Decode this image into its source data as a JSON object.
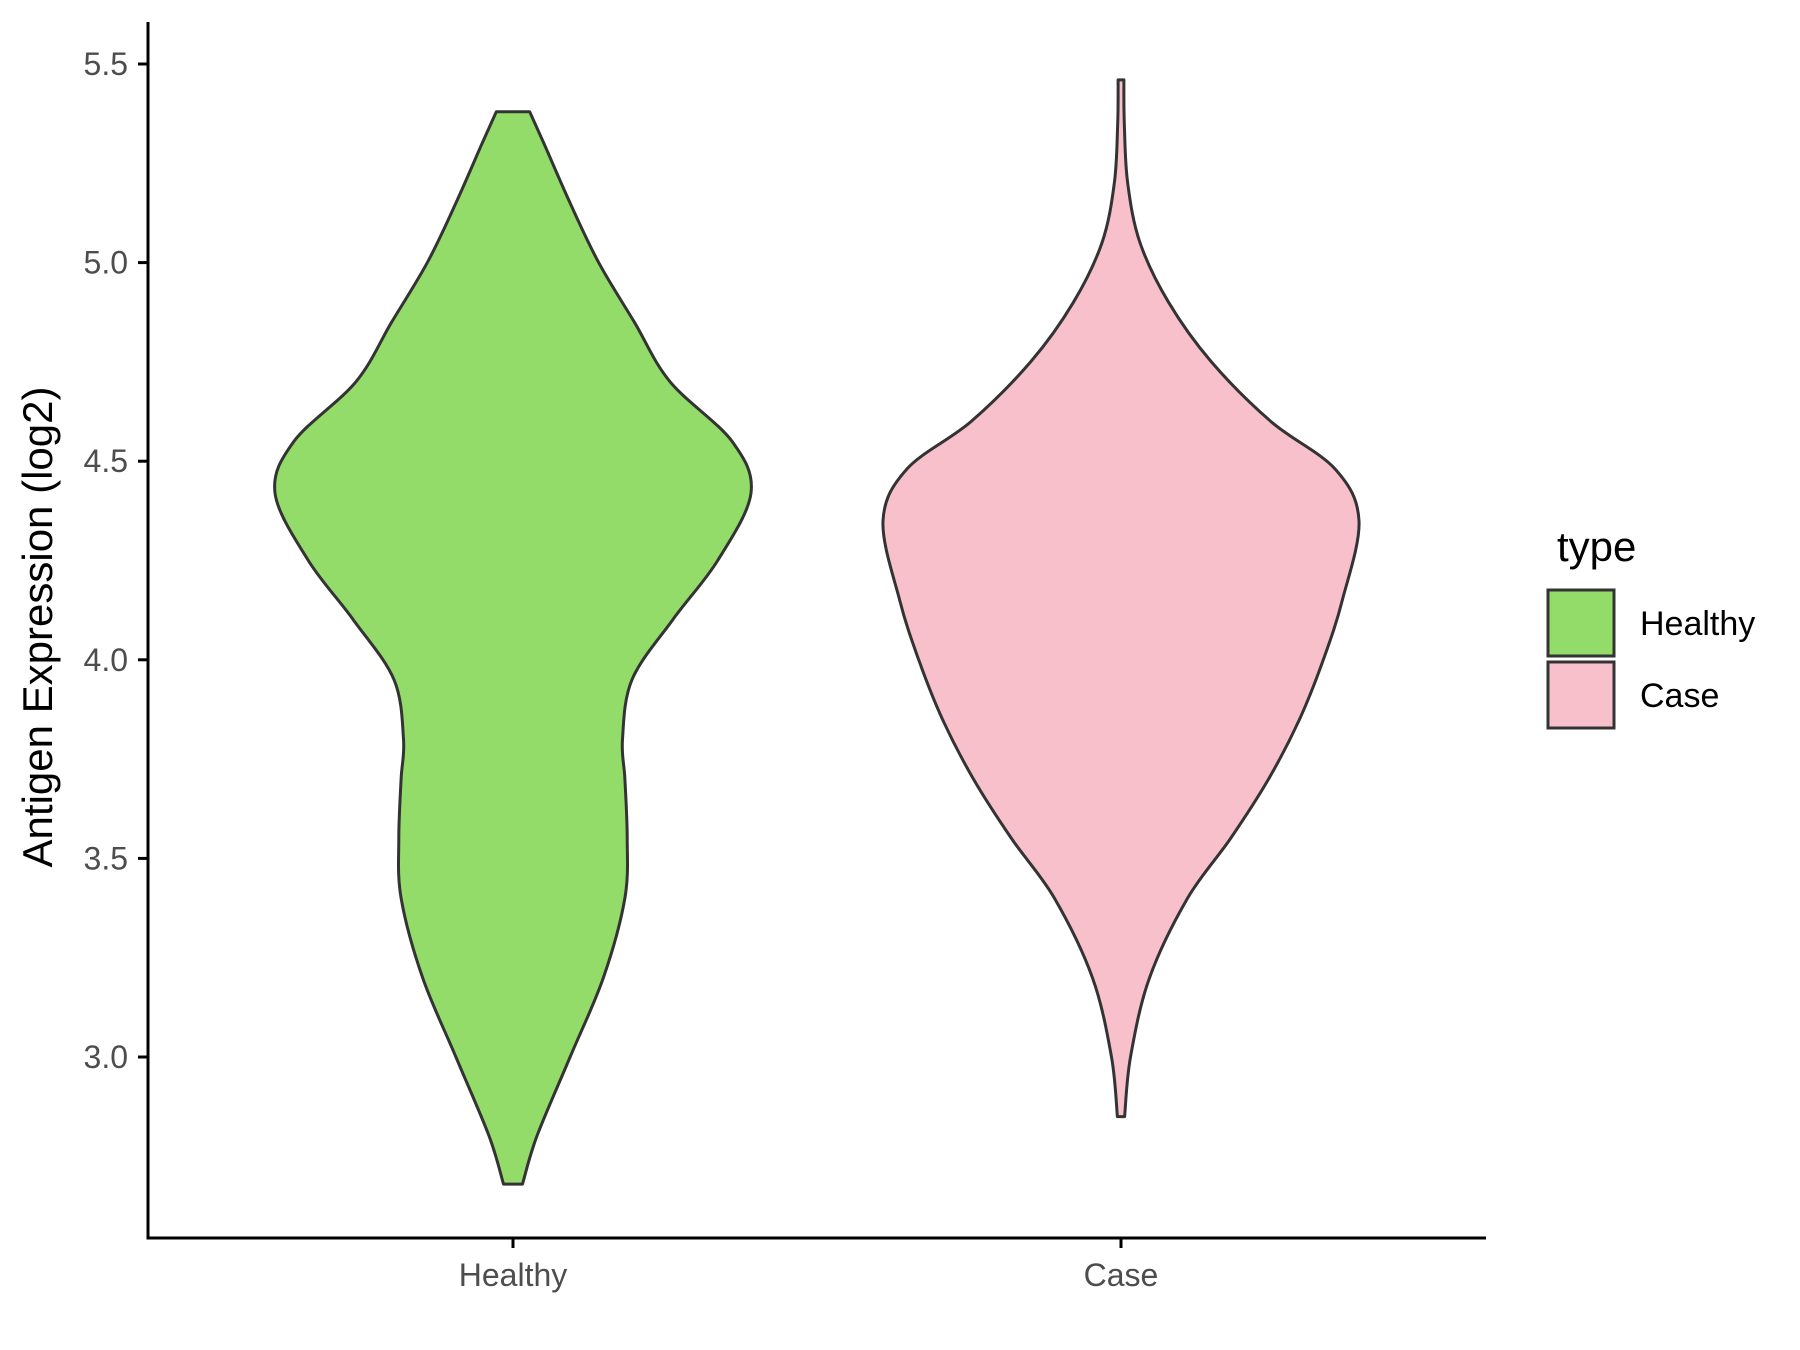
{
  "chart_data": {
    "type": "violin",
    "title": "",
    "xlabel": "",
    "ylabel": "Antigen Expression (log2)",
    "ylim": [
      2.55,
      5.6
    ],
    "yticks": [
      "3.0",
      "3.5",
      "4.0",
      "4.5",
      "5.0",
      "5.5"
    ],
    "categories": [
      "Healthy",
      "Case"
    ],
    "legend": {
      "title": "type",
      "position": "right",
      "entries": [
        "Healthy",
        "Case"
      ]
    },
    "grid": false,
    "series": [
      {
        "name": "Healthy",
        "color": "#93dc6a",
        "range": [
          2.68,
          5.38
        ],
        "density": [
          [
            2.68,
            0.04
          ],
          [
            2.8,
            0.1
          ],
          [
            3.0,
            0.24
          ],
          [
            3.2,
            0.38
          ],
          [
            3.4,
            0.47
          ],
          [
            3.55,
            0.48
          ],
          [
            3.7,
            0.47
          ],
          [
            3.8,
            0.46
          ],
          [
            3.95,
            0.5
          ],
          [
            4.1,
            0.67
          ],
          [
            4.25,
            0.86
          ],
          [
            4.42,
            1.0
          ],
          [
            4.55,
            0.92
          ],
          [
            4.7,
            0.66
          ],
          [
            4.85,
            0.51
          ],
          [
            5.0,
            0.36
          ],
          [
            5.15,
            0.24
          ],
          [
            5.3,
            0.13
          ],
          [
            5.38,
            0.07
          ]
        ]
      },
      {
        "name": "Case",
        "color": "#f7c0cb",
        "range": [
          2.85,
          5.46
        ],
        "density": [
          [
            2.85,
            0.015
          ],
          [
            3.0,
            0.04
          ],
          [
            3.2,
            0.12
          ],
          [
            3.4,
            0.28
          ],
          [
            3.55,
            0.46
          ],
          [
            3.7,
            0.62
          ],
          [
            3.85,
            0.75
          ],
          [
            4.0,
            0.85
          ],
          [
            4.15,
            0.93
          ],
          [
            4.35,
            1.0
          ],
          [
            4.48,
            0.9
          ],
          [
            4.6,
            0.63
          ],
          [
            4.75,
            0.38
          ],
          [
            4.9,
            0.2
          ],
          [
            5.05,
            0.08
          ],
          [
            5.2,
            0.028
          ],
          [
            5.35,
            0.014
          ],
          [
            5.46,
            0.012
          ]
        ]
      }
    ]
  }
}
